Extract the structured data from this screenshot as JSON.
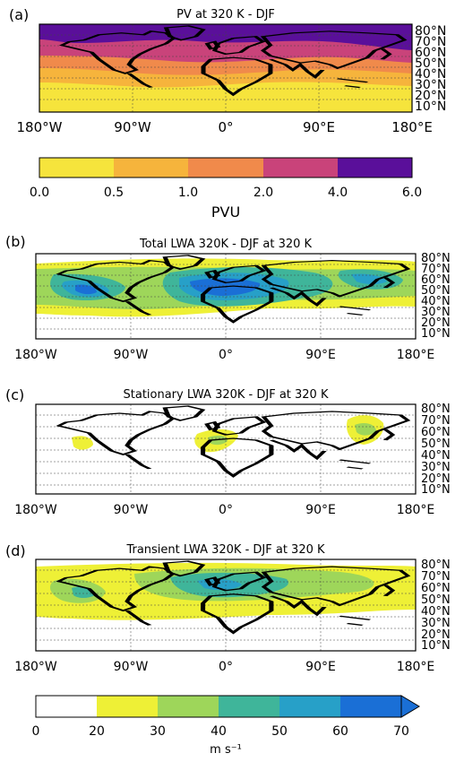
{
  "panels": [
    {
      "id": "a",
      "label": "(a)",
      "title": "PV at 320 K - DJF",
      "lon_ticks": [
        "180°W",
        "90°W",
        "0°",
        "90°E",
        "180°E"
      ],
      "lat_ticks": [
        "80°N",
        "70°N",
        "60°N",
        "50°N",
        "40°N",
        "30°N",
        "20°N",
        "10°N"
      ]
    },
    {
      "id": "b",
      "label": "(b)",
      "title": "Total LWA 320K - DJF at 320 K",
      "lon_ticks": [
        "180°W",
        "90°W",
        "0°",
        "90°E",
        "180°E"
      ],
      "lat_ticks": [
        "80°N",
        "70°N",
        "60°N",
        "50°N",
        "40°N",
        "30°N",
        "20°N",
        "10°N"
      ]
    },
    {
      "id": "c",
      "label": "(c)",
      "title": "Stationary LWA 320K - DJF at 320 K",
      "lon_ticks": [
        "180°W",
        "90°W",
        "0°",
        "90°E",
        "180°E"
      ],
      "lat_ticks": [
        "80°N",
        "70°N",
        "60°N",
        "50°N",
        "40°N",
        "30°N",
        "20°N",
        "10°N"
      ]
    },
    {
      "id": "d",
      "label": "(d)",
      "title": "Transient LWA 320K - DJF at 320 K",
      "lon_ticks": [
        "180°W",
        "90°W",
        "0°",
        "90°E",
        "180°E"
      ],
      "lat_ticks": [
        "80°N",
        "70°N",
        "60°N",
        "50°N",
        "40°N",
        "30°N",
        "20°N",
        "10°N"
      ]
    }
  ],
  "colorbar_pv": {
    "label": "PVU",
    "ticks": [
      "0.0",
      "0.5",
      "1.0",
      "2.0",
      "4.0",
      "6.0"
    ],
    "colors": [
      "#f6e43c",
      "#f6b43c",
      "#f08a4b",
      "#c9437a",
      "#5a0f9a"
    ]
  },
  "colorbar_lwa": {
    "label": "m s⁻¹",
    "ticks": [
      "0",
      "20",
      "30",
      "40",
      "50",
      "60",
      "70"
    ],
    "colors": [
      "#ffffff",
      "#eef036",
      "#9ed65a",
      "#3fb59a",
      "#27a0c8",
      "#1a6fd6"
    ]
  }
}
